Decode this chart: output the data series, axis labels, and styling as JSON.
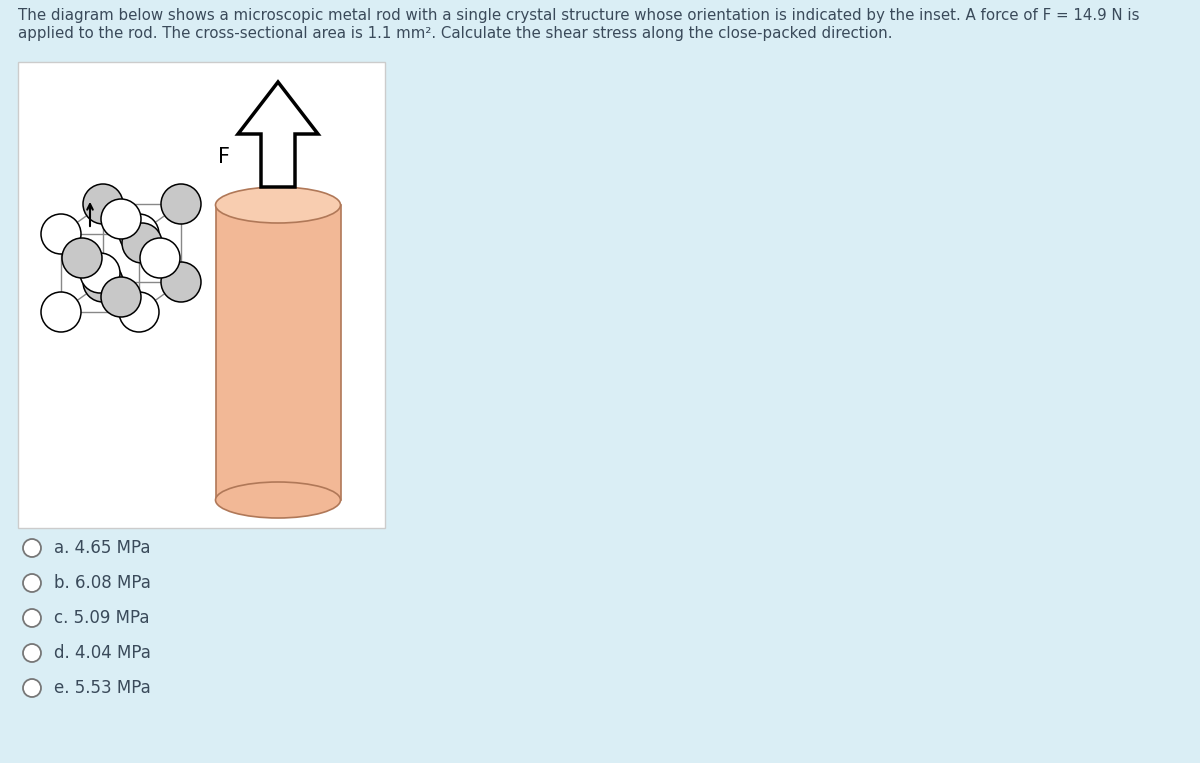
{
  "bg_color": "#daeef5",
  "box_bg_color": "#ffffff",
  "text_color": "#3a4a5a",
  "title_line1": "The diagram below shows a microscopic metal rod with a single crystal structure whose orientation is indicated by the inset. A force of F = 14.9 N is",
  "title_line2": "applied to the rod. The cross-sectional area is 1.1 mm². Calculate the shear stress along the close-packed direction.",
  "choices": [
    "a. 4.65 MPa",
    "b. 6.08 MPa",
    "c. 5.09 MPa",
    "d. 4.04 MPa",
    "e. 5.53 MPa"
  ],
  "cylinder_body_color": "#f2b896",
  "cylinder_top_color": "#f8cdb0",
  "cylinder_edge_color": "#b07858",
  "arrow_fill": "#ffffff",
  "arrow_edge": "#000000",
  "crystal_line_color": "#888888",
  "crystal_white_atom": "#ffffff",
  "crystal_gray_atom": "#c8c8c8"
}
